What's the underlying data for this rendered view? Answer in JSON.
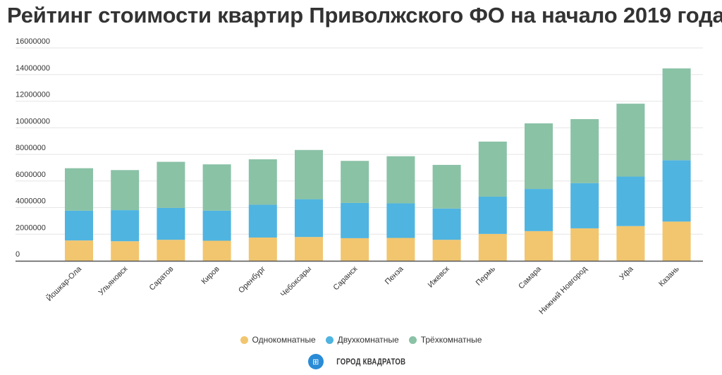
{
  "chart_data": {
    "type": "bar",
    "stacked": true,
    "title": "Рейтинг стоимости квартир Приволжского ФО на начало 2019 года",
    "xlabel": "",
    "ylabel": "",
    "ylim": [
      0,
      16000000
    ],
    "yticks": [
      "0",
      "2000000",
      "4000000",
      "6000000",
      "8000000",
      "10000000",
      "12000000",
      "14000000",
      "16000000"
    ],
    "grid": true,
    "legend_position": "bottom",
    "categories": [
      "Йошкар-Ола",
      "Ульяновск",
      "Саратов",
      "Киров",
      "Оренбург",
      "Чебоксары",
      "Саранск",
      "Пенза",
      "Ижевск",
      "Пермь",
      "Самара",
      "Нижний Новгород",
      "Уфа",
      "Казань"
    ],
    "series": [
      {
        "name": "Однокомнатные",
        "color": "#f2c66f",
        "values": [
          1530000,
          1470000,
          1580000,
          1510000,
          1750000,
          1790000,
          1700000,
          1720000,
          1580000,
          2020000,
          2230000,
          2440000,
          2610000,
          2950000
        ]
      },
      {
        "name": "Двухкомнатные",
        "color": "#4fb4e0",
        "values": [
          2240000,
          2340000,
          2400000,
          2260000,
          2460000,
          2840000,
          2650000,
          2600000,
          2350000,
          2800000,
          3170000,
          3400000,
          3720000,
          4610000
        ]
      },
      {
        "name": "Трёхкомнатные",
        "color": "#8ac2a6",
        "values": [
          3190000,
          3010000,
          3460000,
          3480000,
          3420000,
          3700000,
          3160000,
          3540000,
          3280000,
          4140000,
          4930000,
          4810000,
          5480000,
          6900000
        ]
      }
    ]
  },
  "brand": {
    "name": "ГОРОД КВАДРАТОВ",
    "icon": "grid-squares-icon"
  }
}
